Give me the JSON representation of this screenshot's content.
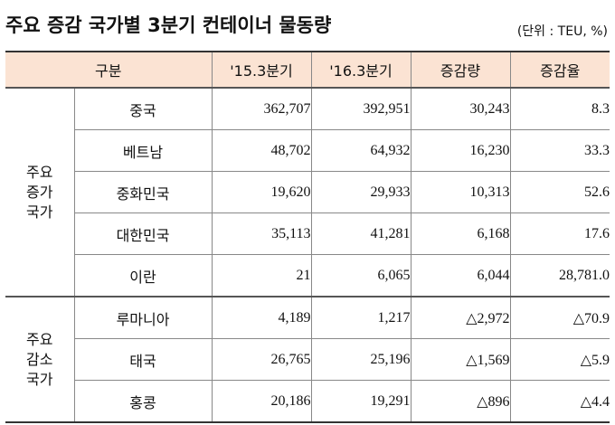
{
  "title": "주요 증감 국가별 3분기 컨테이너 물동량",
  "unit": "(단위 : TEU, %)",
  "table": {
    "headers": [
      "구분",
      "'15.3분기",
      "'16.3분기",
      "증감량",
      "증감율"
    ],
    "groups": [
      {
        "label_lines": [
          "주요",
          "증가",
          "국가"
        ],
        "rows": [
          {
            "country": "중국",
            "q3_2015": "362,707",
            "q3_2016": "392,951",
            "change": "30,243",
            "rate": "8.3"
          },
          {
            "country": "베트남",
            "q3_2015": "48,702",
            "q3_2016": "64,932",
            "change": "16,230",
            "rate": "33.3"
          },
          {
            "country": "중화민국",
            "q3_2015": "19,620",
            "q3_2016": "29,933",
            "change": "10,313",
            "rate": "52.6"
          },
          {
            "country": "대한민국",
            "q3_2015": "35,113",
            "q3_2016": "41,281",
            "change": "6,168",
            "rate": "17.6"
          },
          {
            "country": "이란",
            "q3_2015": "21",
            "q3_2016": "6,065",
            "change": "6,044",
            "rate": "28,781.0"
          }
        ]
      },
      {
        "label_lines": [
          "주요",
          "감소",
          "국가"
        ],
        "rows": [
          {
            "country": "루마니아",
            "q3_2015": "4,189",
            "q3_2016": "1,217",
            "change": "△2,972",
            "rate": "△70.9"
          },
          {
            "country": "태국",
            "q3_2015": "26,765",
            "q3_2016": "25,196",
            "change": "△1,569",
            "rate": "△5.9"
          },
          {
            "country": "홍콩",
            "q3_2015": "20,186",
            "q3_2016": "19,291",
            "change": "△896",
            "rate": "△4.4"
          }
        ]
      }
    ]
  },
  "colors": {
    "header_bg": "#fbe3d3"
  }
}
